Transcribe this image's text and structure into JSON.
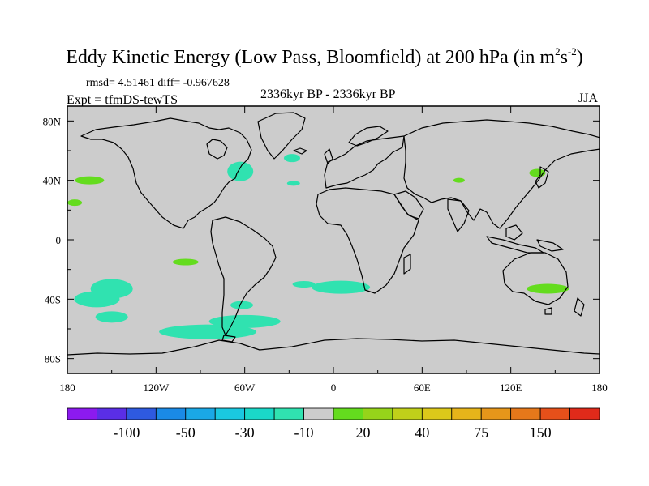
{
  "title": {
    "main": "Eddy Kinetic Energy (Low Pass, Bloomfield) at 200 hPa (in m",
    "sup1": "2",
    "s": "s",
    "sup2": "-2",
    "close": ")"
  },
  "stats": {
    "rmsd_diff": "rmsd= 4.51461 diff= -0.967628",
    "period": "2336kyr BP - 2336kyr BP",
    "experiment": "Expt = tfmDS-tewTS",
    "season": "JJA"
  },
  "map": {
    "lon_ticks": [
      "180",
      "120W",
      "60W",
      "0",
      "60E",
      "120E",
      "180"
    ],
    "lat_ticks": [
      "80N",
      "40N",
      "0",
      "40S",
      "80S"
    ],
    "land_color": "#cccccc",
    "coast_color": "#000000"
  },
  "colorbar": {
    "colors": [
      "#8c1aef",
      "#5a2ee6",
      "#2e5ae0",
      "#1a8ae6",
      "#1aa8e6",
      "#1ac8e0",
      "#1ad8c8",
      "#30e2b0",
      "#cccccc",
      "#64dc1e",
      "#96d41a",
      "#c0d01a",
      "#dcc81a",
      "#e6b41a",
      "#e6961a",
      "#e6781a",
      "#e6501a",
      "#e02a1a"
    ],
    "labels": [
      "-100",
      "-50",
      "-30",
      "-10",
      "20",
      "40",
      "75",
      "150"
    ]
  },
  "chart_data": {
    "type": "heatmap",
    "title": "Eddy Kinetic Energy (Low Pass, Bloomfield) at 200 hPa (in m2s-2)",
    "season": "JJA",
    "anomaly_patches": [
      {
        "region": "North Pacific 40N",
        "lon": -165,
        "lat": 40,
        "category": "20"
      },
      {
        "region": "North Pacific 25N",
        "lon": -175,
        "lat": 25,
        "category": "20"
      },
      {
        "region": "Eastern North America",
        "lon": -63,
        "lat": 46,
        "category": "-10"
      },
      {
        "region": "North Atlantic 55N",
        "lon": -28,
        "lat": 55,
        "category": "-10"
      },
      {
        "region": "Central Atlantic 38N",
        "lon": -27,
        "lat": 38,
        "category": "-10"
      },
      {
        "region": "Central Asia",
        "lon": 85,
        "lat": 40,
        "category": "20"
      },
      {
        "region": "Northeast Asia / Japan",
        "lon": 138,
        "lat": 45,
        "category": "20"
      },
      {
        "region": "South Pacific 40S",
        "lon": -150,
        "lat": -33,
        "category": "-10"
      },
      {
        "region": "Southeast Pacific",
        "lon": -100,
        "lat": -15,
        "category": "20"
      },
      {
        "region": "South Atlantic / Indian 30S",
        "lon": 5,
        "lat": -32,
        "category": "-10"
      },
      {
        "region": "Southern Ocean 60S",
        "lon": -85,
        "lat": -62,
        "category": "-10"
      },
      {
        "region": "Australia",
        "lon": 145,
        "lat": -33,
        "category": "20"
      }
    ]
  }
}
